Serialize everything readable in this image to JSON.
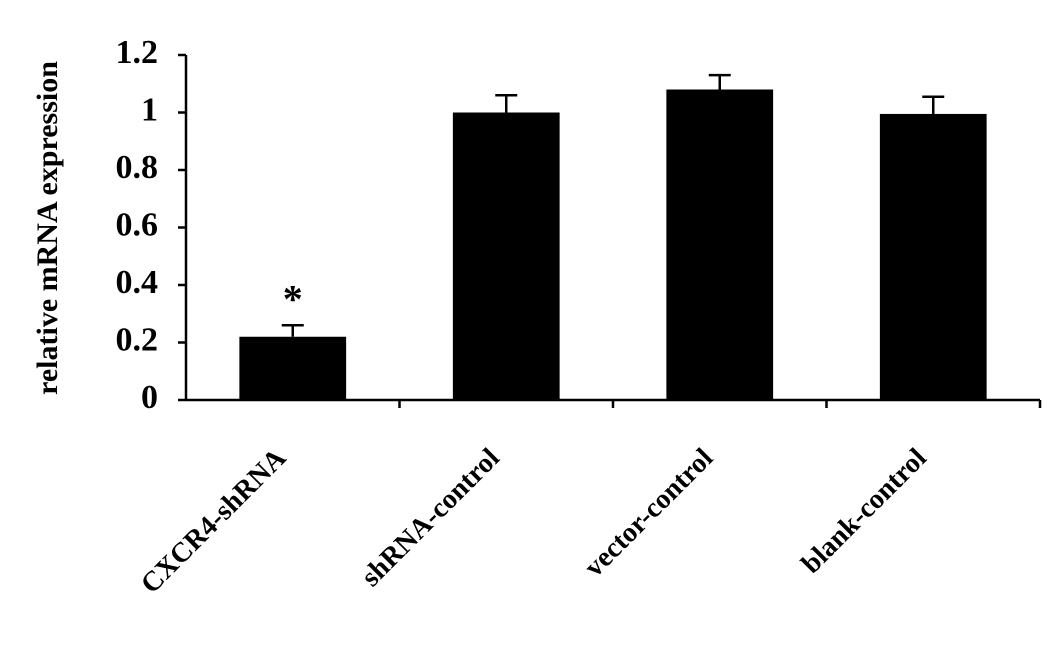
{
  "chart_data": {
    "type": "bar",
    "y_label": "relative mRNA expression",
    "categories": [
      "CXCR4-shRNA",
      "shRNA-control",
      "vector-control",
      "blank-control"
    ],
    "values": [
      0.22,
      1.0,
      1.08,
      0.995
    ],
    "errors": [
      0.04,
      0.06,
      0.05,
      0.06
    ],
    "annotations": [
      "*",
      null,
      null,
      null
    ],
    "color": "#000000",
    "ylim": [
      0,
      1.2
    ],
    "yticks": [
      0,
      0.2,
      0.4,
      0.6,
      0.8,
      1,
      1.2
    ]
  }
}
